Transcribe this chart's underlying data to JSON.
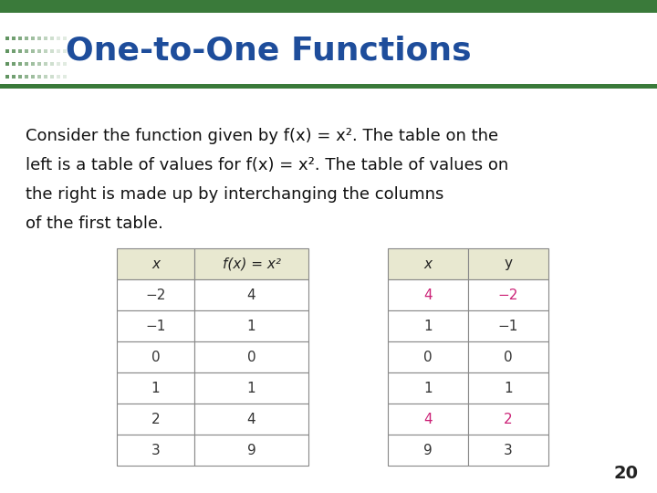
{
  "title": "One-to-One Functions",
  "title_color": "#1E4D9B",
  "slide_bg": "#FFFFFF",
  "top_line_color": "#3A7A3A",
  "bottom_line_color": "#3A7A3A",
  "description_lines": [
    "Consider the function given by f(x) = x². The table on the",
    "left is a table of values for f(x) = x². The table of values on",
    "the right is made up by interchanging the columns",
    "of the first table."
  ],
  "table1_header": [
    "x",
    "f(x) = x²"
  ],
  "table1_data": [
    [
      "−2",
      "4"
    ],
    [
      "−1",
      "1"
    ],
    [
      "0",
      "0"
    ],
    [
      "1",
      "1"
    ],
    [
      "2",
      "4"
    ],
    [
      "3",
      "9"
    ]
  ],
  "table2_header": [
    "x",
    "y"
  ],
  "table2_data": [
    [
      "4",
      "−2"
    ],
    [
      "1",
      "−1"
    ],
    [
      "0",
      "0"
    ],
    [
      "1",
      "1"
    ],
    [
      "4",
      "2"
    ],
    [
      "9",
      "3"
    ]
  ],
  "table2_pink_rows": [
    0,
    4
  ],
  "pink_color": "#CC2277",
  "normal_color": "#333333",
  "header_bg": "#E8E8D0",
  "body_bg": "#FFFFFF",
  "border_color": "#888888",
  "page_number": "20"
}
